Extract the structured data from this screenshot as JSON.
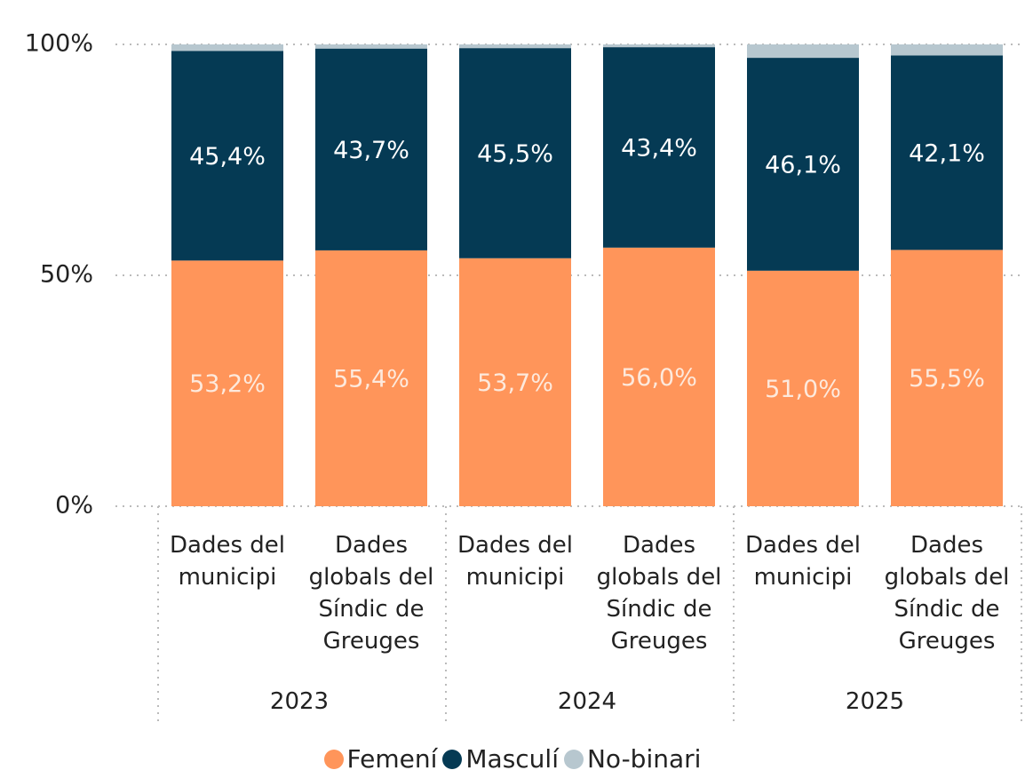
{
  "chart_data": {
    "type": "stacked_bar",
    "categories": [
      "Dades del municipi",
      "Dades globals del Síndic de Greuges",
      "Dades del municipi",
      "Dades globals del Síndic de Greuges",
      "Dades del municipi",
      "Dades globals del Síndic de Greuges"
    ],
    "groups": [
      "2023",
      "2024",
      "2025"
    ],
    "series": [
      {
        "name": "Femení",
        "color": "#ff955a",
        "label_color": "#fde9dc",
        "values": [
          53.2,
          55.4,
          53.7,
          56.0,
          51.0,
          55.5
        ],
        "value_labels": [
          "53,2%",
          "55,4%",
          "53,7%",
          "56,0%",
          "51,0%",
          "55,5%"
        ]
      },
      {
        "name": "Masculí",
        "color": "#053a54",
        "label_color": "#ffffff",
        "values": [
          45.4,
          43.7,
          45.5,
          43.4,
          46.1,
          42.1
        ],
        "value_labels": [
          "45,4%",
          "43,7%",
          "45,5%",
          "43,4%",
          "46,1%",
          "42,1%"
        ]
      },
      {
        "name": "No-binari",
        "color": "#b7c7cf",
        "values": [
          1.4,
          0.9,
          0.8,
          0.6,
          2.9,
          2.4
        ]
      }
    ],
    "ylim": [
      0,
      100
    ],
    "yticks": [
      {
        "value": 0,
        "label": "0%"
      },
      {
        "value": 50,
        "label": "50%"
      },
      {
        "value": 100,
        "label": "100%"
      }
    ],
    "grid": true
  }
}
